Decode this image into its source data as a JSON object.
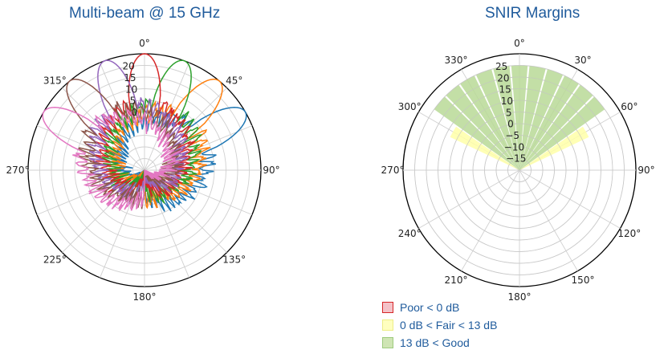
{
  "chart_data": [
    {
      "type": "polar-line",
      "title": "Multi-beam @ 15 GHz",
      "angle_labels": [
        "0°",
        "315°",
        "270°",
        "225°",
        "180°",
        "135°",
        "90°",
        "45°"
      ],
      "radial_labels": [
        "0",
        "5",
        "10",
        "15",
        "20"
      ],
      "rlim": [
        -25,
        25
      ],
      "theta_direction": "counterclockwise",
      "theta_zero": "top",
      "grid": true,
      "series": [
        {
          "color": "#1f77b4",
          "main_lobe_deg": -60,
          "peak": 25,
          "beamwidth": 10
        },
        {
          "color": "#ff7f0e",
          "main_lobe_deg": -40,
          "peak": 25,
          "beamwidth": 10
        },
        {
          "color": "#2ca02c",
          "main_lobe_deg": -20,
          "peak": 25,
          "beamwidth": 10
        },
        {
          "color": "#d62728",
          "main_lobe_deg": 0,
          "peak": 25,
          "beamwidth": 10
        },
        {
          "color": "#9467bd",
          "main_lobe_deg": 20,
          "peak": 25,
          "beamwidth": 10
        },
        {
          "color": "#8c564b",
          "main_lobe_deg": 40,
          "peak": 25,
          "beamwidth": 10
        },
        {
          "color": "#e377c2",
          "main_lobe_deg": 60,
          "peak": 25,
          "beamwidth": 10
        }
      ]
    },
    {
      "type": "polar-bar",
      "title": "SNIR Margins",
      "angle_labels": [
        "0°",
        "330°",
        "300°",
        "270°",
        "240°",
        "210°",
        "180°",
        "150°",
        "120°",
        "90°",
        "60°",
        "30°"
      ],
      "radial_labels": [
        "−15",
        "−10",
        "−5",
        "0",
        "5",
        "10",
        "15",
        "20",
        "25"
      ],
      "rlim": [
        -20,
        30
      ],
      "grid": true,
      "bands": [
        {
          "angle_deg": -60,
          "width_deg": 9,
          "category": "fair",
          "value": 13
        },
        {
          "angle_deg": -50,
          "width_deg": 9,
          "category": "good",
          "value": 25
        },
        {
          "angle_deg": -40,
          "width_deg": 9,
          "category": "good",
          "value": 25
        },
        {
          "angle_deg": -30,
          "width_deg": 9,
          "category": "good",
          "value": 25
        },
        {
          "angle_deg": -20,
          "width_deg": 9,
          "category": "good",
          "value": 25
        },
        {
          "angle_deg": -10,
          "width_deg": 9,
          "category": "good",
          "value": 25
        },
        {
          "angle_deg": 0,
          "width_deg": 9,
          "category": "good",
          "value": 25
        },
        {
          "angle_deg": 10,
          "width_deg": 9,
          "category": "good",
          "value": 25
        },
        {
          "angle_deg": 20,
          "width_deg": 9,
          "category": "good",
          "value": 25
        },
        {
          "angle_deg": 30,
          "width_deg": 9,
          "category": "good",
          "value": 25
        },
        {
          "angle_deg": 40,
          "width_deg": 9,
          "category": "good",
          "value": 25
        },
        {
          "angle_deg": 50,
          "width_deg": 9,
          "category": "good",
          "value": 25
        },
        {
          "angle_deg": 60,
          "width_deg": 9,
          "category": "fair",
          "value": 13
        }
      ],
      "legend": [
        {
          "label": "Poor < 0 dB",
          "fill": "#f4c2c8",
          "stroke": "#d62728"
        },
        {
          "label": "0 dB < Fair < 13 dB",
          "fill": "#ffffbf",
          "stroke": "#eded88"
        },
        {
          "label": "13 dB < Good",
          "fill": "#cfe5b4",
          "stroke": "#9ecb7e"
        }
      ],
      "colors": {
        "good": "#b9d996",
        "fair": "#ffffa8",
        "poor": "#f4c2c8"
      }
    }
  ]
}
